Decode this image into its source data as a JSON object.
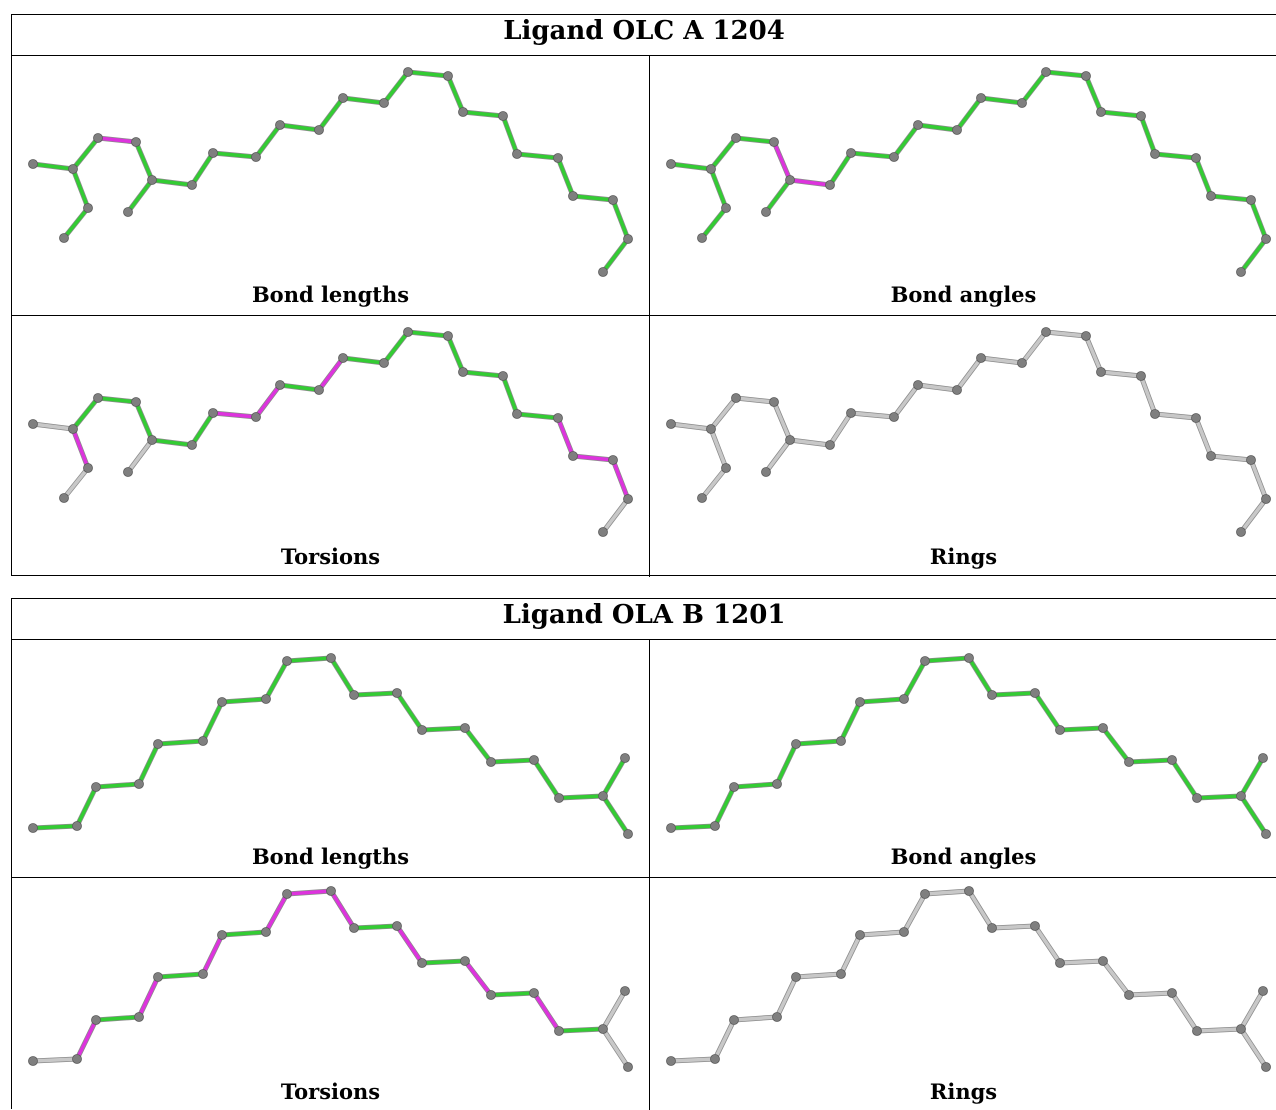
{
  "colors": {
    "ok": "#33cc33",
    "outlier": "#dd33dd",
    "neutral": "#c8c8c8",
    "atom": "#7f7f7f"
  },
  "blocks": [
    {
      "title": "Ligand OLC A 1204",
      "molecule": "olc",
      "panels": [
        {
          "caption": "Bond lengths",
          "highlight": [
            [
              2,
              3
            ]
          ],
          "default_color": "ok"
        },
        {
          "caption": "Bond angles",
          "highlight": [
            [
              3,
              5
            ],
            [
              5,
              7
            ]
          ],
          "default_color": "ok"
        },
        {
          "caption": "Torsions",
          "highlight": [
            [
              1,
              4
            ],
            [
              9,
              10
            ],
            [
              10,
              11
            ],
            [
              12,
              13
            ],
            [
              23,
              24
            ],
            [
              24,
              25
            ],
            [
              25,
              26
            ]
          ],
          "grey": [
            [
              0,
              1
            ],
            [
              4,
              8
            ],
            [
              5,
              6
            ],
            [
              26,
              27
            ]
          ],
          "default_color": "ok"
        },
        {
          "caption": "Rings",
          "highlight": [],
          "default_color": "neutral"
        }
      ]
    },
    {
      "title": "Ligand OLA B 1201",
      "molecule": "ola",
      "panels": [
        {
          "caption": "Bond lengths",
          "highlight": [],
          "default_color": "ok"
        },
        {
          "caption": "Bond angles",
          "highlight": [],
          "default_color": "ok"
        },
        {
          "caption": "Torsions",
          "highlight": [
            [
              1,
              2
            ],
            [
              3,
              4
            ],
            [
              5,
              6
            ],
            [
              7,
              8
            ],
            [
              8,
              9
            ],
            [
              9,
              10
            ],
            [
              11,
              12
            ],
            [
              13,
              14
            ],
            [
              15,
              16
            ]
          ],
          "grey": [
            [
              0,
              1
            ],
            [
              17,
              18
            ],
            [
              17,
              19
            ]
          ],
          "default_color": "ok"
        },
        {
          "caption": "Rings",
          "highlight": [],
          "default_color": "neutral"
        }
      ]
    }
  ]
}
